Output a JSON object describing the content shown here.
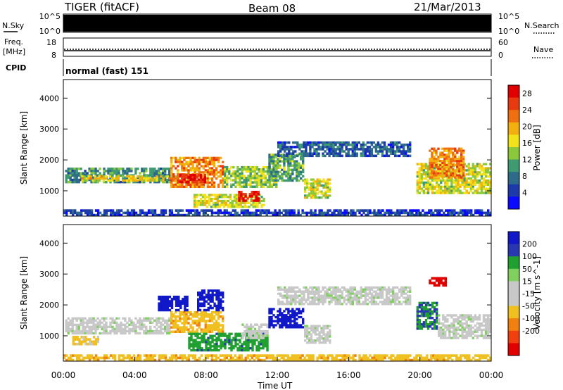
{
  "header": {
    "radar": "TIGER (fitACF)",
    "beam": "Beam 08",
    "date": "21/Mar/2013"
  },
  "strip_panels": {
    "nsky": {
      "label": "N.Sky",
      "ticks": [
        "10^5",
        "10^0"
      ]
    },
    "nsearch": {
      "label": "N.Search",
      "ticks": [
        "10^5",
        "10^0"
      ]
    },
    "freq": {
      "label_line1": "Freq.",
      "label_line2": "[MHz]",
      "ticks": [
        "18",
        "8"
      ]
    },
    "nave": {
      "label": "Nave",
      "ticks": [
        "60",
        "0"
      ]
    },
    "cpid": {
      "label": "CPID",
      "value": "normal (fast) 151"
    }
  },
  "colors": {
    "power_scale": [
      "#0a0aff",
      "#1c3aa8",
      "#2e6b8a",
      "#3f9a72",
      "#8cc83c",
      "#f2e21c",
      "#f2b010",
      "#ee7010",
      "#e83a10",
      "#e00000"
    ],
    "velocity_scale": [
      "#1018c8",
      "#2838b0",
      "#20a030",
      "#80d060",
      "#c8c8c8",
      "#c8c8c8",
      "#f0c020",
      "#f08010",
      "#f04010",
      "#e00000"
    ]
  },
  "chart_data": [
    {
      "type": "heatmap",
      "title": "Power",
      "xlabel": "Time UT",
      "ylabel": "Slant Range [km]",
      "x_ticks": [
        "00:00",
        "04:00",
        "08:00",
        "12:00",
        "16:00",
        "20:00",
        "00:00"
      ],
      "y_ticks": [
        "1000",
        "2000",
        "3000",
        "4000"
      ],
      "ylim": [
        180,
        4600
      ],
      "x_range_hours": [
        0,
        24
      ],
      "colorbar": {
        "label": "Power [dB]",
        "ticks": [
          "4",
          "8",
          "12",
          "16",
          "20",
          "24",
          "28"
        ],
        "range": [
          0,
          30
        ]
      },
      "regions": [
        {
          "t0": 0.1,
          "t1": 6.0,
          "r0": 1250,
          "r1": 1750,
          "level": 8
        },
        {
          "t0": 1.0,
          "t1": 6.5,
          "r0": 1300,
          "r1": 1500,
          "level": 16
        },
        {
          "t0": 6.0,
          "t1": 9.0,
          "r0": 1100,
          "r1": 2100,
          "level": 20
        },
        {
          "t0": 6.5,
          "t1": 8.0,
          "r0": 1250,
          "r1": 1550,
          "level": 26
        },
        {
          "t0": 7.3,
          "t1": 11.3,
          "r0": 450,
          "r1": 900,
          "level": 14
        },
        {
          "t0": 9.8,
          "t1": 11.0,
          "r0": 650,
          "r1": 1000,
          "level": 26
        },
        {
          "t0": 9.0,
          "t1": 12.0,
          "r0": 1100,
          "r1": 1800,
          "level": 12
        },
        {
          "t0": 11.5,
          "t1": 13.5,
          "r0": 1300,
          "r1": 2200,
          "level": 10
        },
        {
          "t0": 13.5,
          "t1": 15.0,
          "r0": 750,
          "r1": 1400,
          "level": 14
        },
        {
          "t0": 12.0,
          "t1": 19.5,
          "r0": 2100,
          "r1": 2600,
          "level": 5
        },
        {
          "t0": 19.8,
          "t1": 24.0,
          "r0": 900,
          "r1": 1900,
          "level": 14
        },
        {
          "t0": 20.5,
          "t1": 22.5,
          "r0": 1400,
          "r1": 2400,
          "level": 20
        },
        {
          "t0": 0.0,
          "t1": 24.0,
          "r0": 180,
          "r1": 400,
          "level": 3
        }
      ]
    },
    {
      "type": "heatmap",
      "title": "Velocity",
      "xlabel": "Time UT",
      "ylabel": "Slant Range [km]",
      "x_ticks": [
        "00:00",
        "04:00",
        "08:00",
        "12:00",
        "16:00",
        "20:00",
        "00:00"
      ],
      "y_ticks": [
        "1000",
        "2000",
        "3000",
        "4000"
      ],
      "ylim": [
        180,
        4600
      ],
      "x_range_hours": [
        0,
        24
      ],
      "colorbar": {
        "label": "Velocity [m s^-1]",
        "ticks": [
          "200",
          "100",
          "50",
          "15",
          "-15",
          "-50",
          "-100",
          "-200"
        ]
      },
      "regions": [
        {
          "t0": 0.1,
          "t1": 6.0,
          "r0": 1050,
          "r1": 1600,
          "velocity": 0
        },
        {
          "t0": 0.5,
          "t1": 2.0,
          "r0": 700,
          "r1": 1000,
          "velocity": -40
        },
        {
          "t0": 6.0,
          "t1": 9.0,
          "r0": 1100,
          "r1": 1800,
          "velocity": -60
        },
        {
          "t0": 5.3,
          "t1": 7.0,
          "r0": 1800,
          "r1": 2300,
          "velocity": 200
        },
        {
          "t0": 7.5,
          "t1": 9.0,
          "r0": 1800,
          "r1": 2500,
          "velocity": 180
        },
        {
          "t0": 7.0,
          "t1": 11.5,
          "r0": 500,
          "r1": 1100,
          "velocity": 60
        },
        {
          "t0": 10.0,
          "t1": 11.5,
          "r0": 900,
          "r1": 1400,
          "velocity": 0
        },
        {
          "t0": 11.5,
          "t1": 13.5,
          "r0": 1250,
          "r1": 1900,
          "velocity": 200
        },
        {
          "t0": 13.5,
          "t1": 15.0,
          "r0": 750,
          "r1": 1350,
          "velocity": 0
        },
        {
          "t0": 12.0,
          "t1": 19.5,
          "r0": 2000,
          "r1": 2600,
          "velocity": 0
        },
        {
          "t0": 19.8,
          "t1": 21.0,
          "r0": 1200,
          "r1": 2100,
          "velocity": 70
        },
        {
          "t0": 21.0,
          "t1": 24.0,
          "r0": 900,
          "r1": 1700,
          "velocity": 0
        },
        {
          "t0": 20.5,
          "t1": 21.5,
          "r0": 2600,
          "r1": 2900,
          "velocity": -200
        },
        {
          "t0": 0.0,
          "t1": 24.0,
          "r0": 180,
          "r1": 400,
          "velocity": -60
        }
      ]
    }
  ]
}
